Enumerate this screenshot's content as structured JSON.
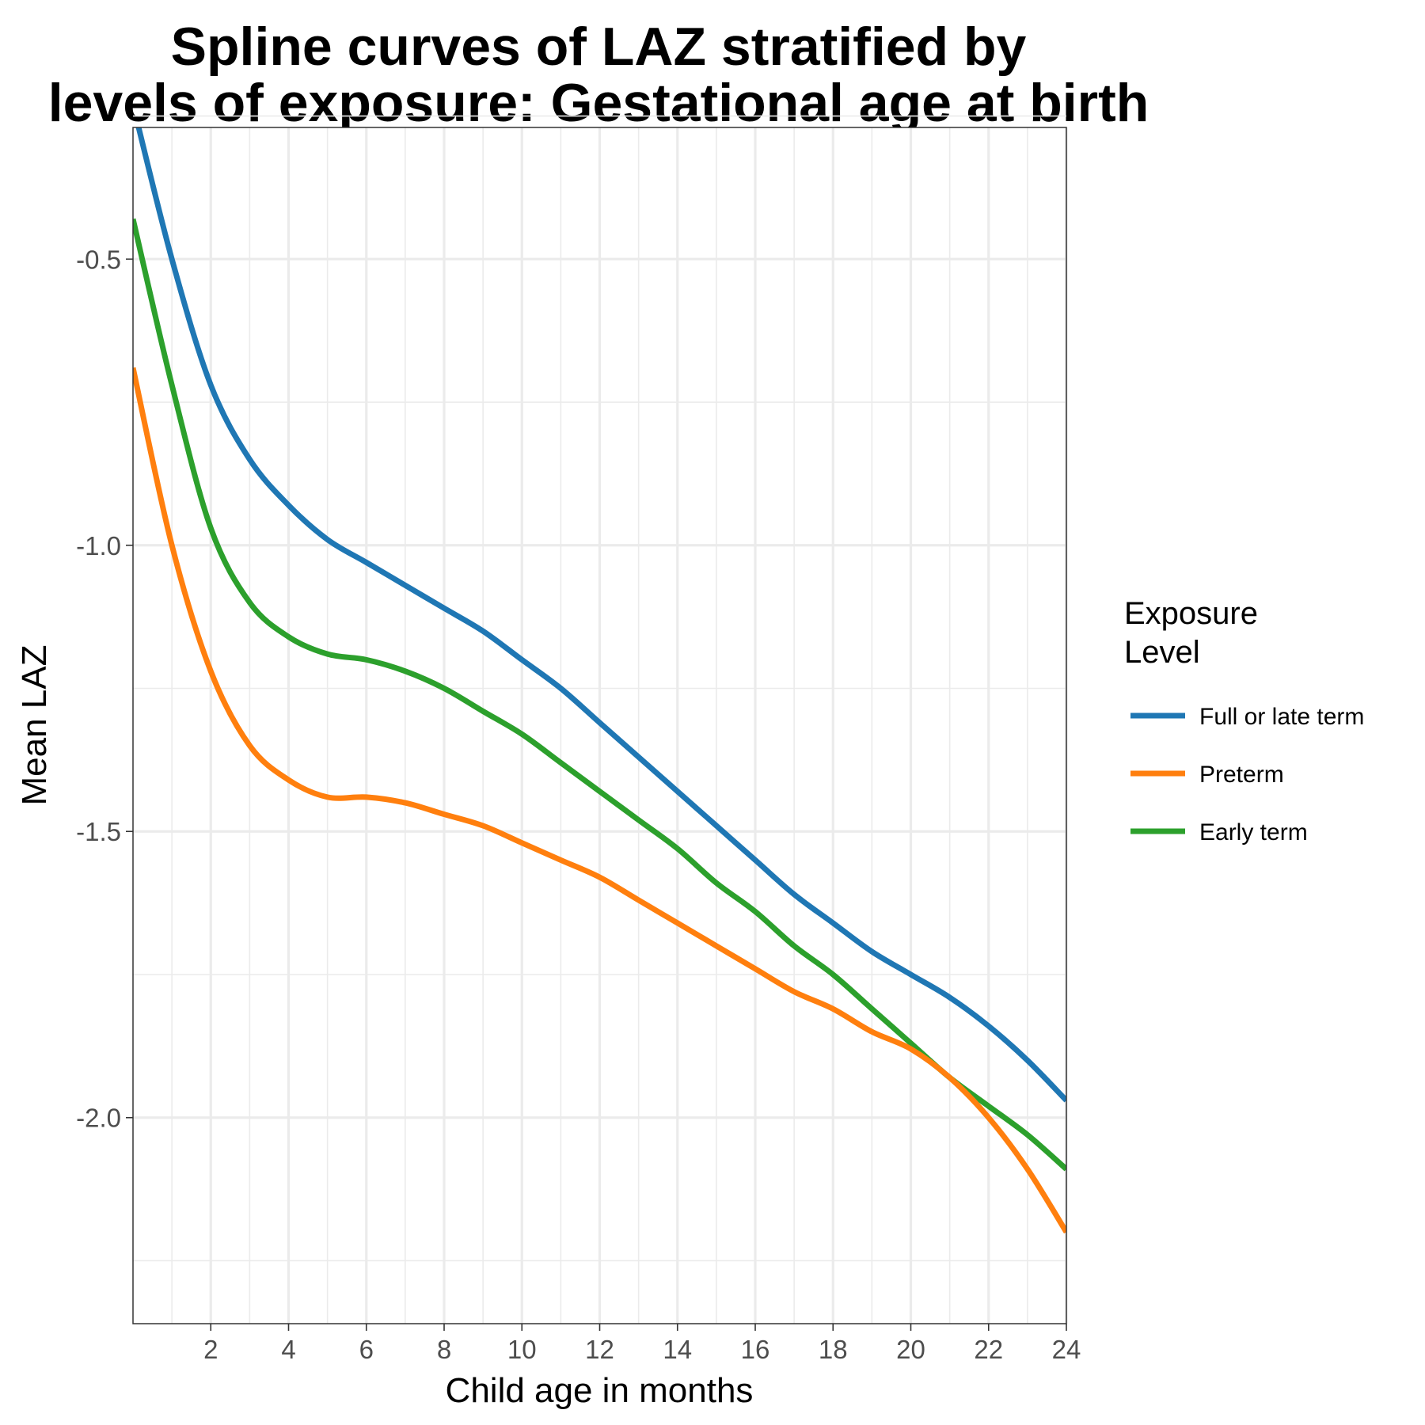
{
  "chart_data": {
    "type": "line",
    "title": [
      "Spline curves of LAZ stratified by",
      "levels of exposure: Gestational age at birth"
    ],
    "xlabel": "Child age in months",
    "ylabel": "Mean LAZ",
    "xlim": [
      0,
      24
    ],
    "ylim": [
      -2.3,
      -0.5
    ],
    "x_ticks": [
      2,
      4,
      6,
      8,
      10,
      12,
      14,
      16,
      18,
      20,
      22,
      24
    ],
    "x_tick_labels": [
      "2",
      "4",
      "6",
      "8",
      "10",
      "12",
      "14",
      "16",
      "18",
      "20",
      "22",
      "24"
    ],
    "y_ticks": [
      -0.5,
      -1.0,
      -1.5,
      -2.0
    ],
    "y_tick_labels": [
      "-0.5",
      "-1.0",
      "-1.5",
      "-2.0"
    ],
    "grid": true,
    "legend": {
      "title": [
        "Exposure",
        "Level"
      ],
      "placement": "right"
    },
    "x": [
      0,
      1,
      2,
      3,
      4,
      5,
      6,
      7,
      8,
      9,
      10,
      11,
      12,
      13,
      14,
      15,
      16,
      17,
      18,
      19,
      20,
      21,
      22,
      23,
      24
    ],
    "series": [
      {
        "name": "Full or late term",
        "color": "#1f77b4",
        "values": [
          -0.23,
          -0.5,
          -0.72,
          -0.85,
          -0.93,
          -0.99,
          -1.03,
          -1.07,
          -1.11,
          -1.15,
          -1.2,
          -1.25,
          -1.31,
          -1.37,
          -1.43,
          -1.49,
          -1.55,
          -1.61,
          -1.66,
          -1.71,
          -1.75,
          -1.79,
          -1.84,
          -1.9,
          -1.97
        ]
      },
      {
        "name": "Preterm",
        "color": "#ff7f0e",
        "values": [
          -0.69,
          -1.0,
          -1.22,
          -1.35,
          -1.41,
          -1.44,
          -1.44,
          -1.45,
          -1.47,
          -1.49,
          -1.52,
          -1.55,
          -1.58,
          -1.62,
          -1.66,
          -1.7,
          -1.74,
          -1.78,
          -1.81,
          -1.85,
          -1.88,
          -1.93,
          -2.0,
          -2.09,
          -2.2
        ]
      },
      {
        "name": "Early term",
        "color": "#2ca02c",
        "values": [
          -0.43,
          -0.72,
          -0.97,
          -1.1,
          -1.16,
          -1.19,
          -1.2,
          -1.22,
          -1.25,
          -1.29,
          -1.33,
          -1.38,
          -1.43,
          -1.48,
          -1.53,
          -1.59,
          -1.64,
          -1.7,
          -1.75,
          -1.81,
          -1.87,
          -1.93,
          -1.98,
          -2.03,
          -2.09
        ]
      }
    ]
  }
}
